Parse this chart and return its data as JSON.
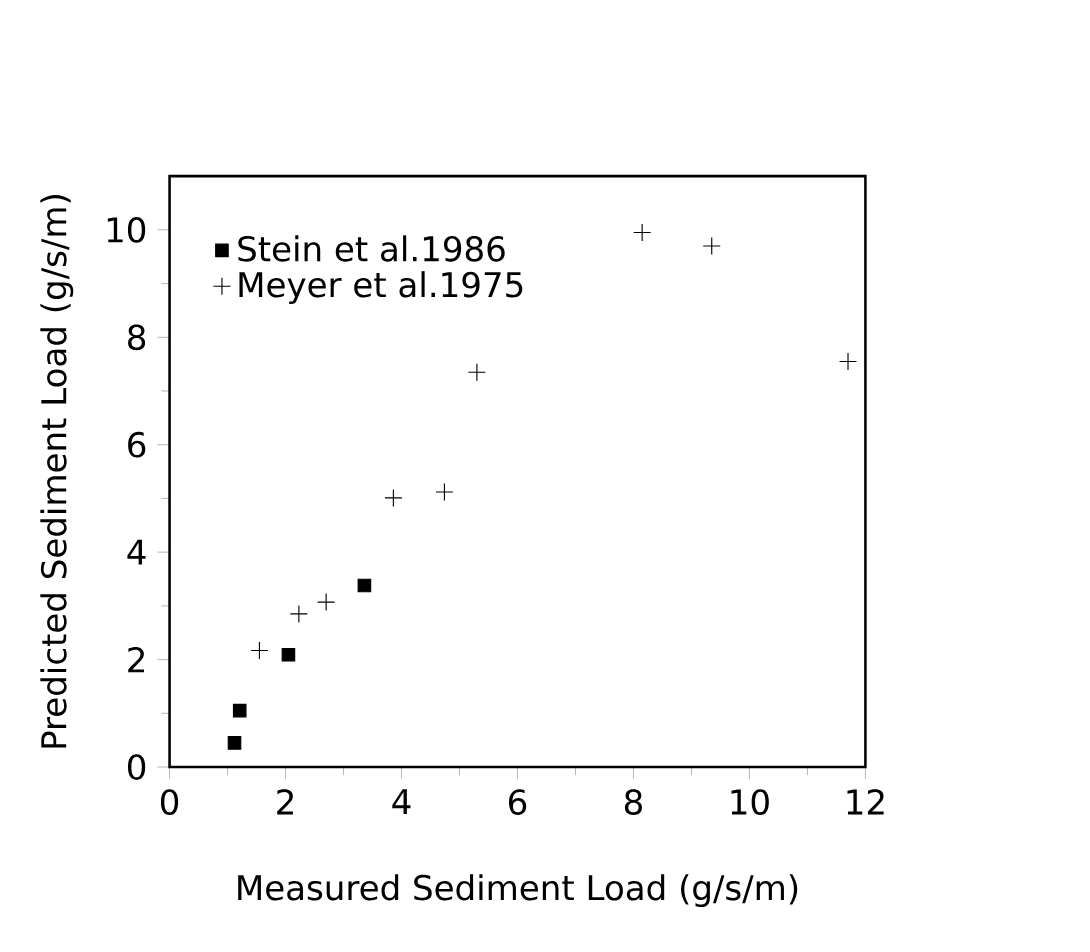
{
  "chart_data": {
    "type": "scatter",
    "xlabel": "Measured Sediment Load (g/s/m)",
    "ylabel": "Predicted Sediment Load (g/s/m)",
    "xlim": [
      0,
      12
    ],
    "ylim": [
      0,
      11
    ],
    "xticks": [
      0,
      2,
      4,
      6,
      8,
      10,
      12
    ],
    "yticks": [
      0,
      2,
      4,
      6,
      8,
      10
    ],
    "legend": "top left",
    "grid": false,
    "series": [
      {
        "name": "Stein  et al.1986",
        "color": "#000000",
        "marker": "square",
        "x": [
          1.12,
          1.21,
          2.05,
          3.36
        ],
        "values": [
          0.45,
          1.05,
          2.09,
          3.38
        ]
      },
      {
        "name": "Meyer  et al.1975",
        "color": "#000000",
        "marker": "cross",
        "x": [
          1.55,
          2.23,
          2.7,
          3.86,
          4.74,
          5.3,
          8.15,
          9.35,
          11.7
        ],
        "values": [
          2.17,
          2.85,
          3.07,
          5.01,
          5.12,
          7.35,
          9.95,
          9.7,
          7.55
        ]
      }
    ]
  }
}
